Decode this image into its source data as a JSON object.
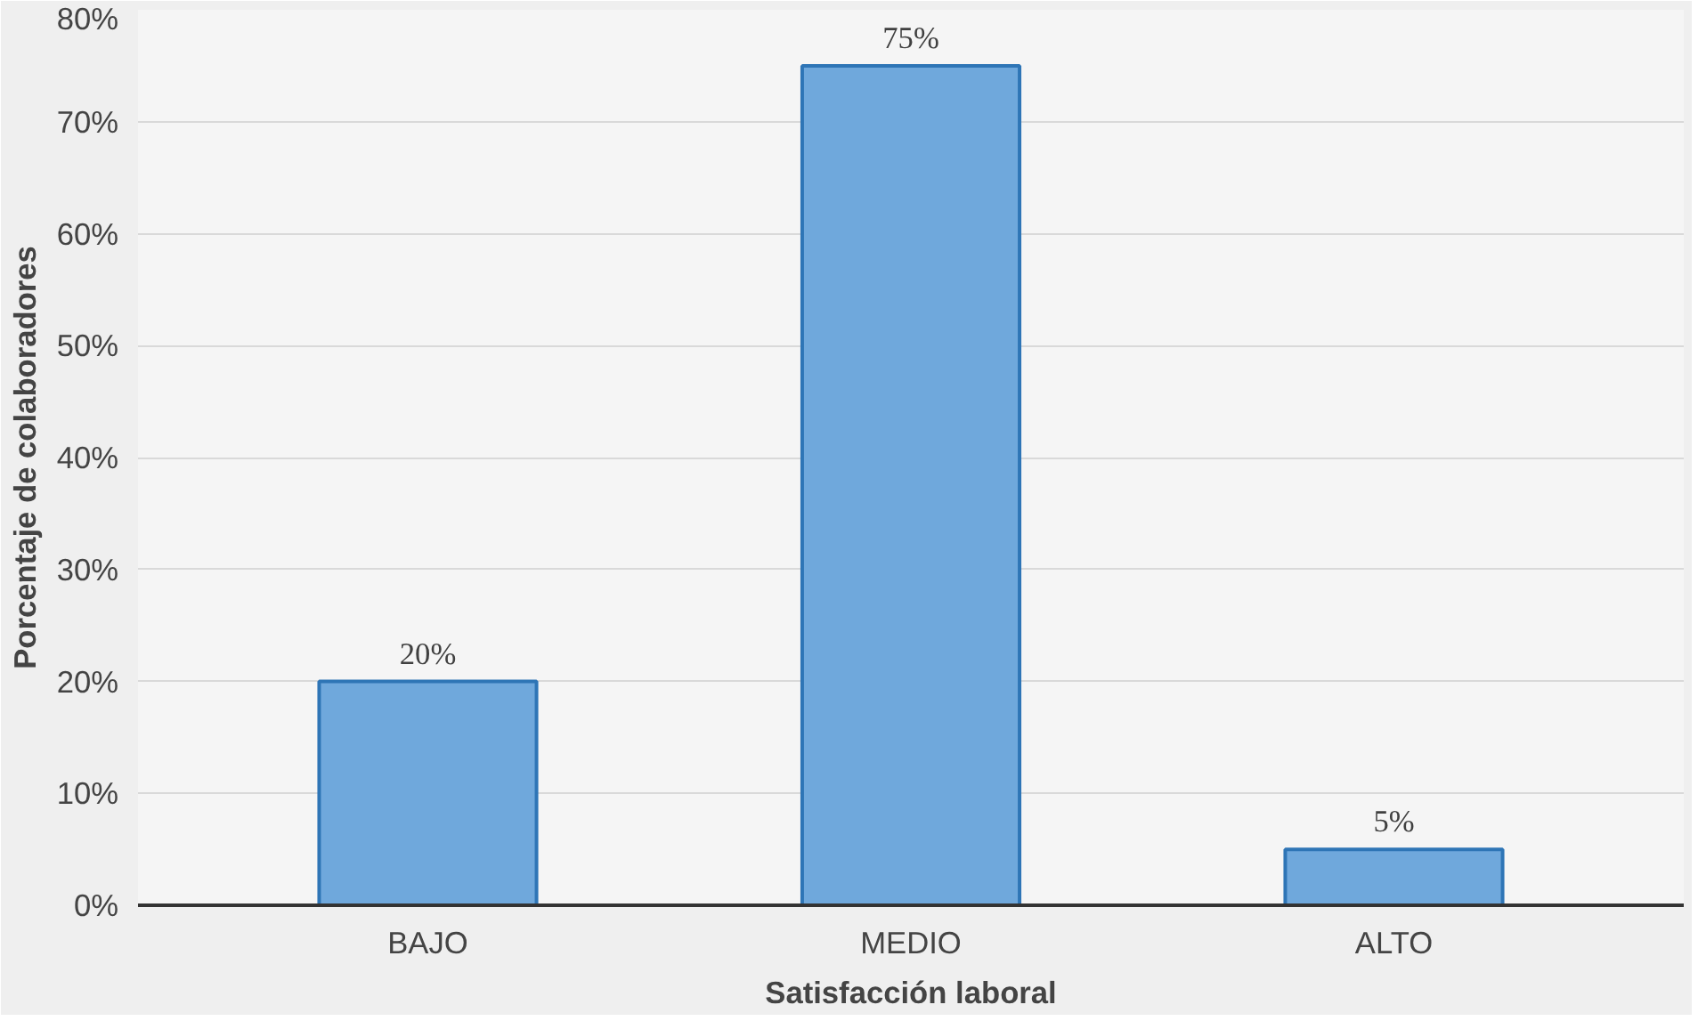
{
  "chart_data": {
    "type": "bar",
    "xlabel": "Satisfacción laboral",
    "ylabel": "Porcentaje de colaboradores",
    "categories": [
      "BAJO",
      "MEDIO",
      "ALTO"
    ],
    "values": [
      20,
      75,
      5
    ],
    "value_labels": [
      "20%",
      "75%",
      "5%"
    ],
    "color": "#6fa8dc",
    "ylim": [
      0,
      80
    ],
    "yticks": [
      {
        "value": 0,
        "label": "0%"
      },
      {
        "value": 10,
        "label": "10%"
      },
      {
        "value": 20,
        "label": "20%"
      },
      {
        "value": 30,
        "label": "30%"
      },
      {
        "value": 40,
        "label": "40%"
      },
      {
        "value": 50,
        "label": "50%"
      },
      {
        "value": 60,
        "label": "60%"
      },
      {
        "value": 70,
        "label": "70%"
      },
      {
        "value": 80,
        "label": "80%"
      }
    ],
    "grid": "y"
  }
}
